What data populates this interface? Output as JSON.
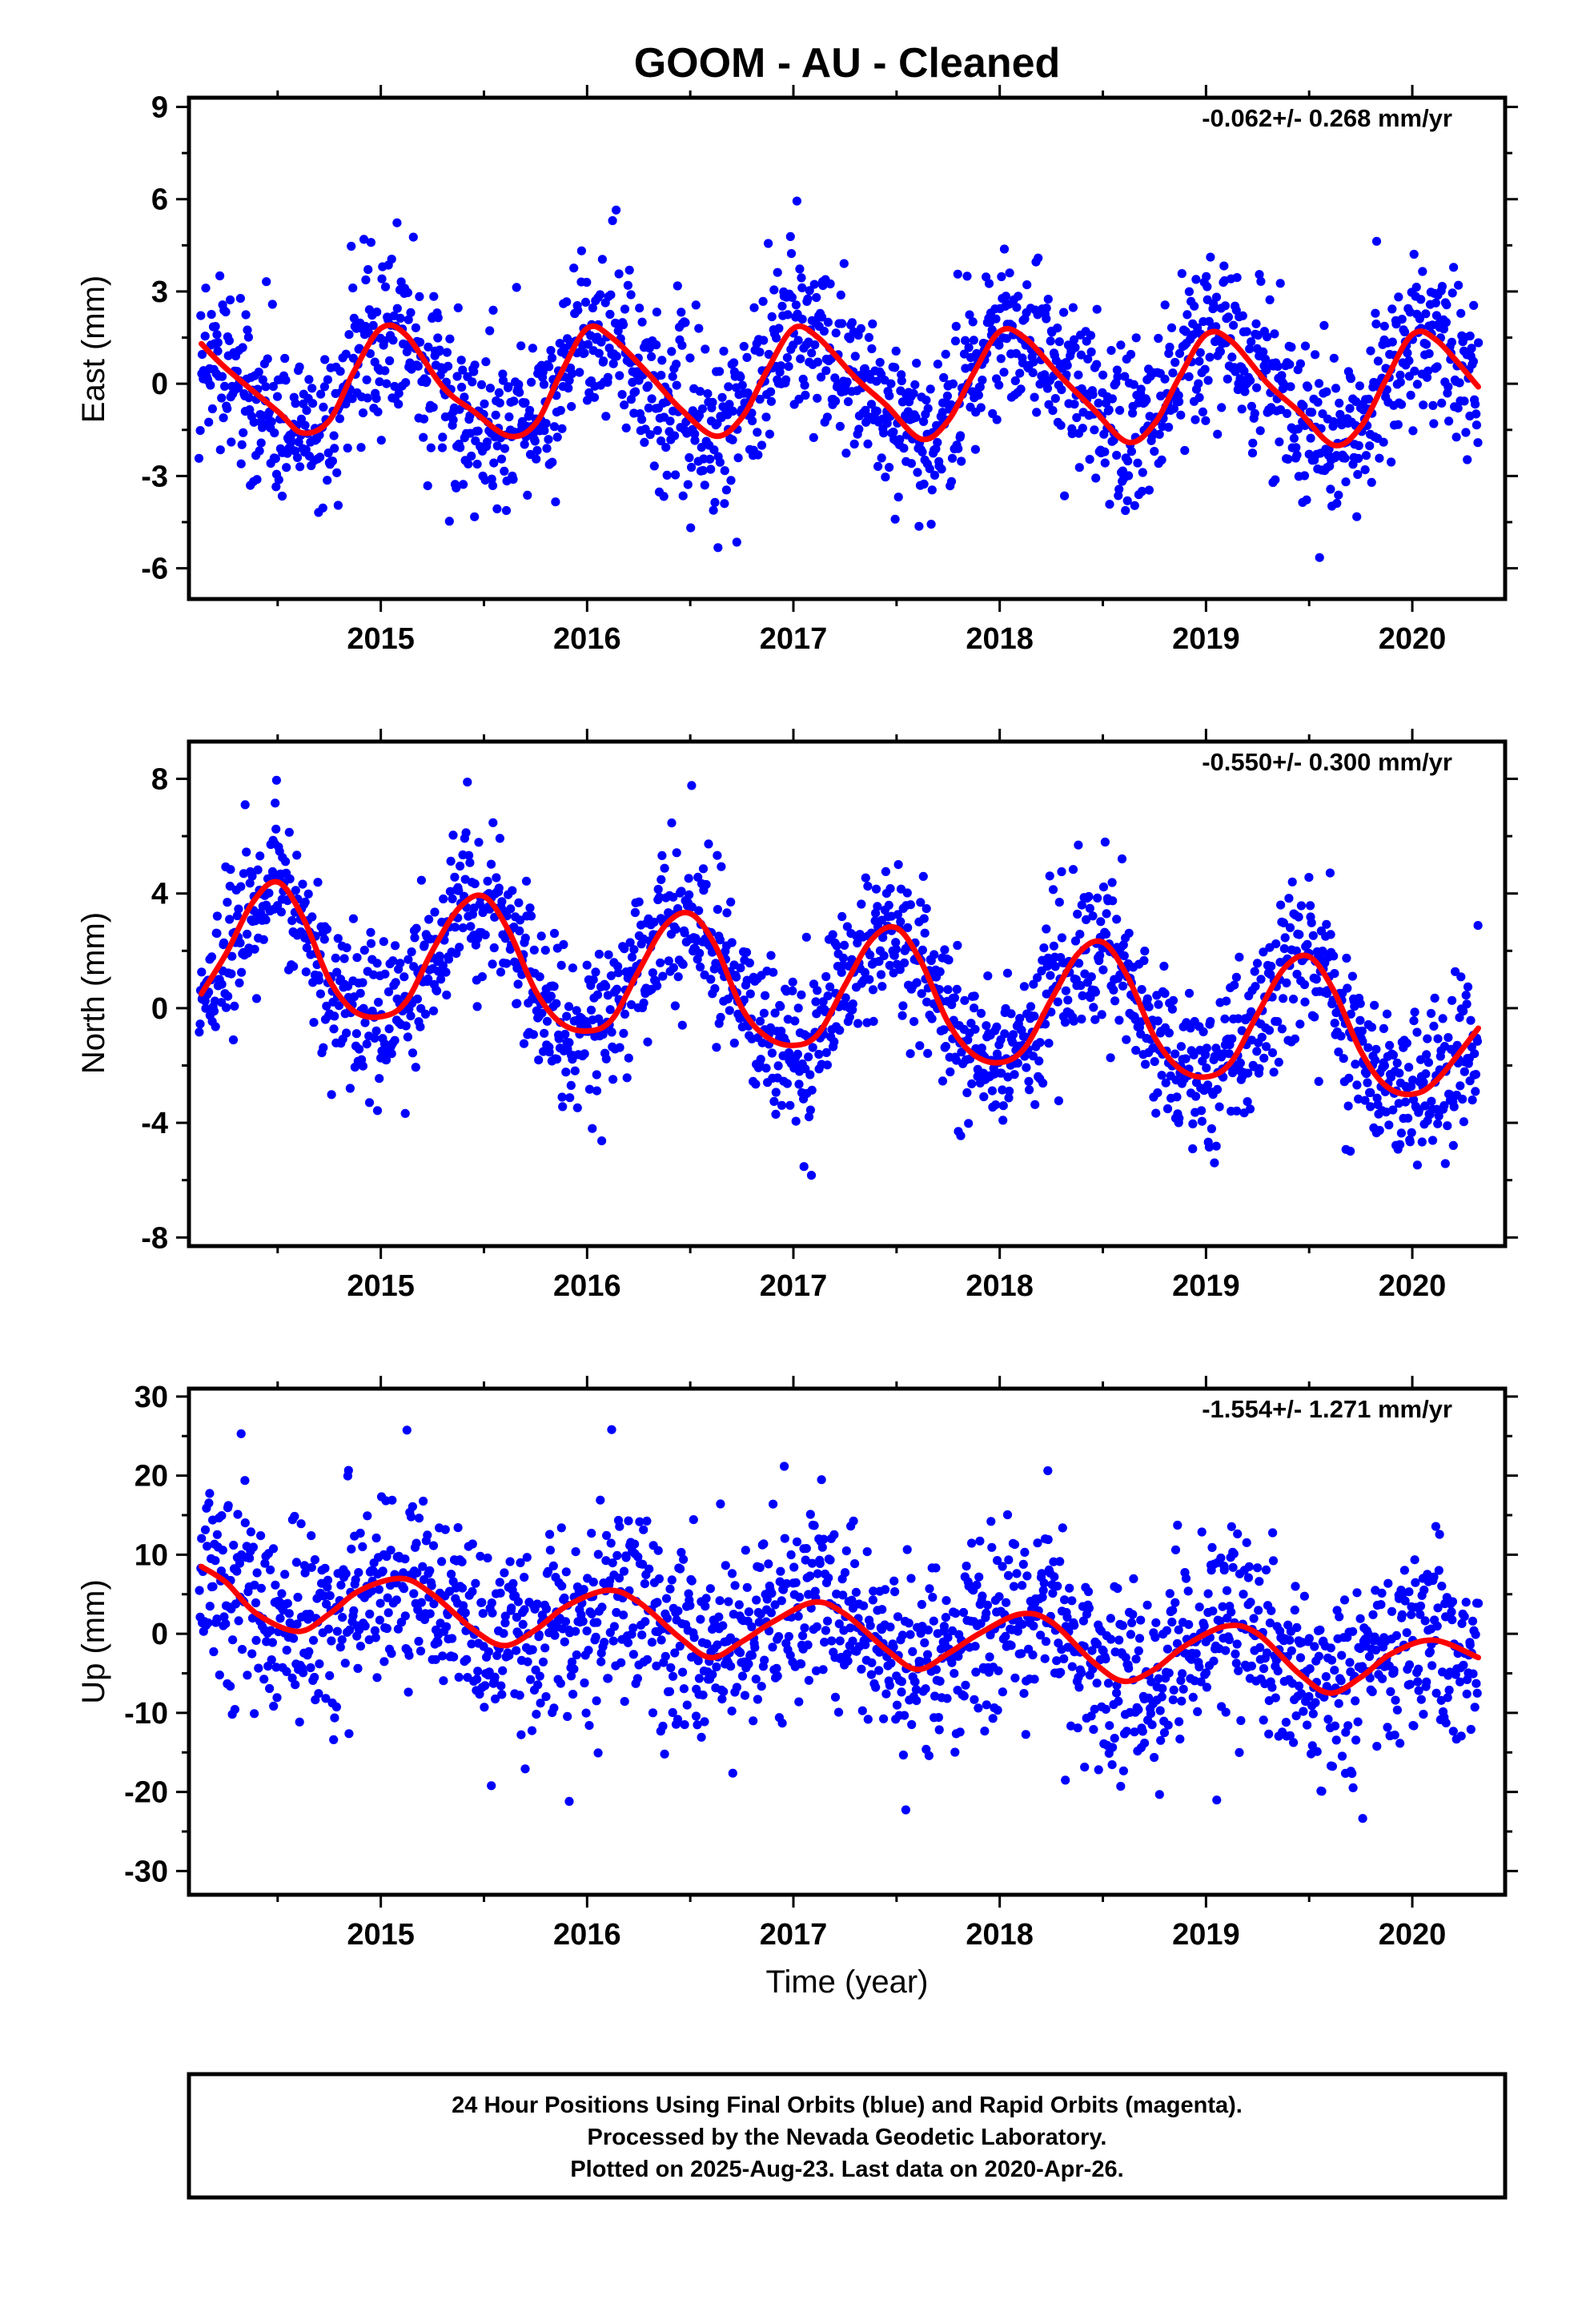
{
  "title": "GOOM  - AU - Cleaned",
  "xlabel": "Time (year)",
  "footer": {
    "line1": "24 Hour Positions Using Final Orbits (blue) and Rapid Orbits (magenta).",
    "line2": "Processed by the Nevada Geodetic Laboratory.",
    "line3": "Plotted on 2025-Aug-23. Last data on 2020-Apr-26."
  },
  "colors": {
    "points": "#0000ff",
    "fit": "#ff0000",
    "frame": "#000000"
  },
  "chart_data": [
    {
      "type": "scatter",
      "name": "east",
      "ylabel": "East (mm)",
      "rate_text": "-0.062+/- 0.268 mm/yr",
      "xlim": [
        2014.07,
        2020.45
      ],
      "ylim": [
        -7.0,
        9.3
      ],
      "xticks": [
        2015,
        2016,
        2017,
        2018,
        2019,
        2020
      ],
      "yticks": [
        -6,
        -3,
        0,
        3,
        6,
        9
      ],
      "fit": {
        "x": [
          2014.13,
          2014.25,
          2014.5,
          2014.62,
          2014.75,
          2014.87,
          2015.0,
          2015.12,
          2015.3,
          2015.45,
          2015.62,
          2015.75,
          2015.87,
          2016.0,
          2016.12,
          2016.3,
          2016.45,
          2016.62,
          2016.75,
          2016.87,
          2017.0,
          2017.12,
          2017.3,
          2017.45,
          2017.62,
          2017.75,
          2017.87,
          2018.0,
          2018.12,
          2018.3,
          2018.45,
          2018.62,
          2018.75,
          2018.87,
          2019.0,
          2019.12,
          2019.3,
          2019.45,
          2019.62,
          2019.75,
          2019.87,
          2020.0,
          2020.12,
          2020.32
        ],
        "y": [
          1.3,
          0.5,
          -0.9,
          -1.6,
          -1.2,
          0.4,
          1.8,
          1.6,
          -0.1,
          -0.9,
          -1.7,
          -1.3,
          0.3,
          1.8,
          1.5,
          0.3,
          -0.8,
          -1.7,
          -1.1,
          0.4,
          1.8,
          1.5,
          0.2,
          -0.7,
          -1.8,
          -1.2,
          0.3,
          1.7,
          1.5,
          0.2,
          -0.8,
          -1.9,
          -1.3,
          0.2,
          1.6,
          1.4,
          0.0,
          -0.9,
          -2.0,
          -1.4,
          0.1,
          1.6,
          1.4,
          -0.1
        ]
      }
    },
    {
      "type": "scatter",
      "name": "north",
      "ylabel": "North (mm)",
      "rate_text": "-0.550+/- 0.300 mm/yr",
      "xlim": [
        2014.07,
        2020.45
      ],
      "ylim": [
        -8.3,
        9.3
      ],
      "xticks": [
        2015,
        2016,
        2017,
        2018,
        2019,
        2020
      ],
      "yticks": [
        -8,
        -4,
        0,
        4,
        8
      ],
      "fit": {
        "x": [
          2014.13,
          2014.25,
          2014.38,
          2014.5,
          2014.62,
          2014.75,
          2014.87,
          2015.0,
          2015.12,
          2015.25,
          2015.38,
          2015.5,
          2015.62,
          2015.75,
          2015.87,
          2016.0,
          2016.12,
          2016.25,
          2016.38,
          2016.5,
          2016.62,
          2016.75,
          2016.87,
          2017.0,
          2017.12,
          2017.25,
          2017.38,
          2017.5,
          2017.62,
          2017.75,
          2017.87,
          2018.0,
          2018.12,
          2018.25,
          2018.38,
          2018.5,
          2018.62,
          2018.75,
          2018.87,
          2019.0,
          2019.12,
          2019.25,
          2019.38,
          2019.5,
          2019.62,
          2019.75,
          2019.87,
          2020.0,
          2020.12,
          2020.32
        ],
        "y": [
          0.5,
          1.9,
          3.7,
          4.4,
          3.2,
          1.0,
          -0.1,
          -0.3,
          0.2,
          2.0,
          3.5,
          3.9,
          2.7,
          0.6,
          -0.5,
          -0.8,
          -0.4,
          1.3,
          2.9,
          3.3,
          2.2,
          0.0,
          -1.0,
          -1.3,
          -0.9,
          0.8,
          2.4,
          2.8,
          1.6,
          -0.5,
          -1.6,
          -1.9,
          -1.4,
          0.3,
          1.9,
          2.3,
          1.1,
          -1.0,
          -2.1,
          -2.4,
          -1.9,
          -0.2,
          1.4,
          1.8,
          0.6,
          -1.5,
          -2.7,
          -3.0,
          -2.5,
          -0.7
        ]
      }
    },
    {
      "type": "scatter",
      "name": "up",
      "ylabel": "Up (mm)",
      "rate_text": "-1.554+/- 1.271 mm/yr",
      "xlim": [
        2014.07,
        2020.45
      ],
      "ylim": [
        -33,
        31
      ],
      "xticks": [
        2015,
        2016,
        2017,
        2018,
        2019,
        2020
      ],
      "yticks": [
        -30,
        -20,
        -10,
        0,
        10,
        20,
        30
      ],
      "fit": {
        "x": [
          2014.13,
          2014.25,
          2014.4,
          2014.6,
          2014.75,
          2014.9,
          2015.1,
          2015.25,
          2015.45,
          2015.6,
          2015.75,
          2015.9,
          2016.1,
          2016.25,
          2016.45,
          2016.6,
          2016.75,
          2016.9,
          2017.1,
          2017.25,
          2017.45,
          2017.6,
          2017.75,
          2017.9,
          2018.1,
          2018.25,
          2018.45,
          2018.6,
          2018.75,
          2018.9,
          2019.1,
          2019.25,
          2019.45,
          2019.6,
          2019.75,
          2019.9,
          2020.1,
          2020.32
        ],
        "y": [
          8.5,
          6.5,
          2.5,
          0.3,
          2.5,
          5.5,
          7.0,
          5.0,
          0.5,
          -1.5,
          0.5,
          3.5,
          5.5,
          4.0,
          -0.5,
          -3.0,
          -1.0,
          1.5,
          4.0,
          2.5,
          -2.0,
          -4.5,
          -2.5,
          0.0,
          2.5,
          1.5,
          -3.5,
          -6.0,
          -4.5,
          -1.5,
          1.0,
          0.0,
          -5.0,
          -7.5,
          -5.5,
          -2.5,
          -0.8,
          -3.0
        ]
      }
    }
  ]
}
